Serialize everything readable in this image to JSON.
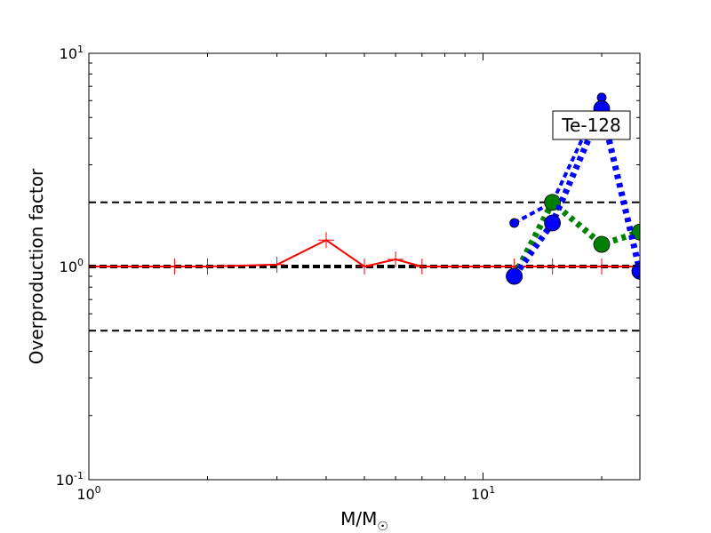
{
  "chart_data": {
    "type": "line",
    "xscale": "log",
    "yscale": "log",
    "xlim": [
      1,
      25
    ],
    "ylim": [
      0.1,
      10
    ],
    "xlabel": "M/M",
    "xlabel_sub": "☉",
    "ylabel": "Overproduction factor",
    "x_ticks": [
      {
        "base": "10",
        "exp": "0"
      },
      {
        "base": "10",
        "exp": "1"
      }
    ],
    "y_ticks": [
      {
        "base": "10",
        "exp": "-1"
      },
      {
        "base": "10",
        "exp": "0"
      },
      {
        "base": "10",
        "exp": "1"
      }
    ],
    "annotation": "Te-128",
    "reference_lines": [
      {
        "y": 2.0,
        "style": "dashed",
        "color": "#000000"
      },
      {
        "y": 1.0,
        "style": "dashed-thick",
        "color": "#000000"
      },
      {
        "y": 0.5,
        "style": "dashed",
        "color": "#000000"
      }
    ],
    "series": [
      {
        "color": "#ff0000",
        "style": "solid",
        "marker": "plus",
        "x": [
          1.0,
          1.65,
          2.0,
          3.0,
          4.0,
          5.0,
          6.0,
          7.0,
          12.0,
          15.0,
          20.0,
          25.0
        ],
        "y": [
          1.0,
          1.0,
          1.0,
          1.02,
          1.33,
          1.0,
          1.08,
          1.0,
          1.0,
          1.0,
          1.0,
          1.0
        ]
      },
      {
        "color": "#0000ff",
        "style": "dashed-thin",
        "marker": "small-circle",
        "x": [
          12.0,
          15.0,
          20.0
        ],
        "y": [
          1.6,
          2.0,
          6.2
        ]
      },
      {
        "color": "#008000",
        "style": "dotted-thick",
        "marker": "circle",
        "x": [
          12.0,
          15.0,
          20.0,
          25.0
        ],
        "y": [
          0.9,
          2.0,
          1.27,
          1.45
        ]
      },
      {
        "color": "#0000ff",
        "style": "dotted-thick",
        "marker": "circle",
        "x": [
          12.0,
          15.0,
          20.0,
          25.0
        ],
        "y": [
          0.9,
          1.6,
          5.5,
          0.95
        ]
      }
    ]
  }
}
